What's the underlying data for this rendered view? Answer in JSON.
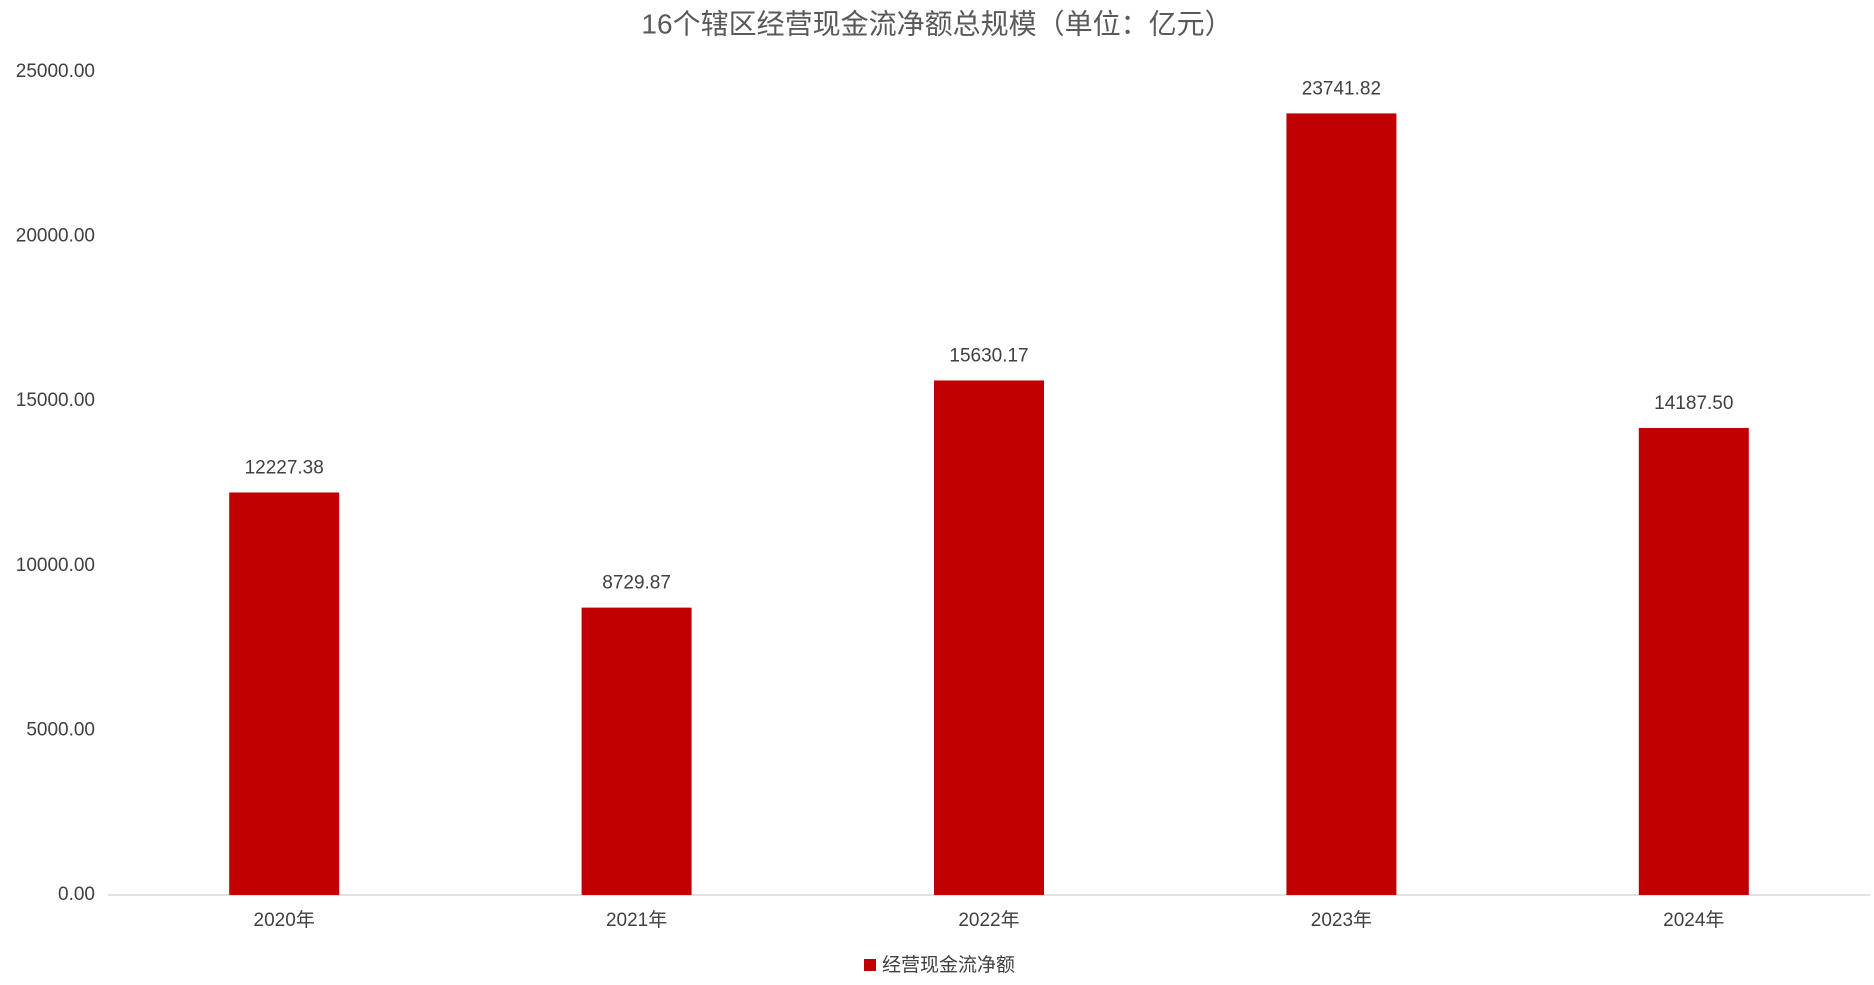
{
  "chart_data": {
    "type": "bar",
    "title": "16个辖区经营现金流净额总规模（单位：亿元）",
    "categories": [
      "2020年",
      "2021年",
      "2022年",
      "2023年",
      "2024年"
    ],
    "series": [
      {
        "name": "经营现金流净额",
        "color": "#c00000",
        "values": [
          12227.38,
          8729.87,
          15630.17,
          23741.82,
          14187.5
        ],
        "value_labels": [
          "12227.38",
          "8729.87",
          "15630.17",
          "23741.82",
          "14187.50"
        ]
      }
    ],
    "ylim": [
      0,
      25000
    ],
    "yticks": [
      {
        "value": 0,
        "label": "0.00"
      },
      {
        "value": 5000,
        "label": "5000.00"
      },
      {
        "value": 10000,
        "label": "10000.00"
      },
      {
        "value": 15000,
        "label": "15000.00"
      },
      {
        "value": 20000,
        "label": "20000.00"
      },
      {
        "value": 25000,
        "label": "25000.00"
      }
    ],
    "grid": false,
    "legend": "bottom"
  }
}
